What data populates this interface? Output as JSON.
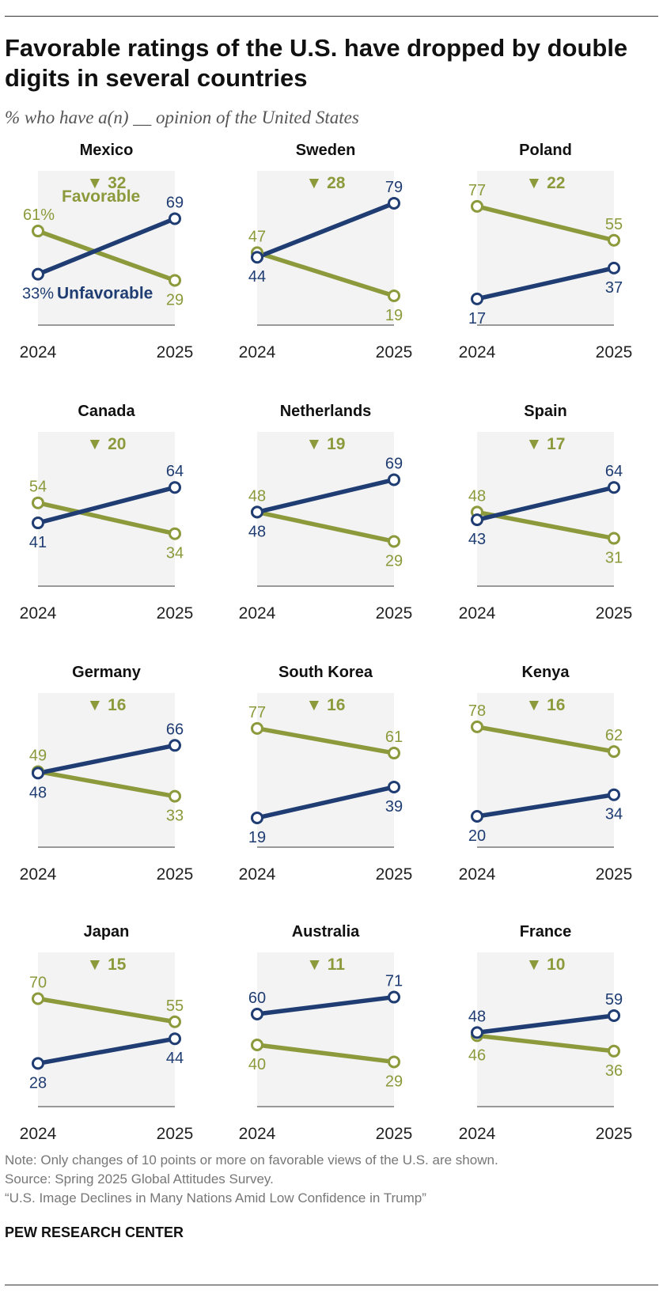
{
  "title": "Favorable ratings of the U.S. have dropped by double digits in several countries",
  "subtitle": "% who have a(n) __ opinion of the United States",
  "colors": {
    "favorable": "#8c9a3c",
    "unfavorable": "#1f3d73",
    "panel": "#f3f3f3",
    "axis": "#999999",
    "year_label": "#222222"
  },
  "notes": {
    "note": "Note: Only changes of 10 points or more on favorable views of the U.S. are shown.",
    "source": "Source: Spring 2025 Global Attitudes Survey.",
    "report": "“U.S. Image Declines in Many Nations Amid Low Confidence in Trump”",
    "org": "PEW RESEARCH CENTER"
  },
  "chart_data": {
    "type": "line",
    "x": [
      "2024",
      "2025"
    ],
    "series_names": [
      "Favorable",
      "Unfavorable"
    ],
    "legend_labels": {
      "favorable": "Favorable",
      "unfavorable": "Unfavorable",
      "first_favorable": "61%",
      "first_unfavorable": "33%"
    },
    "change_marker": "▼",
    "panels": [
      {
        "country": "Mexico",
        "change": "32",
        "favorable": [
          61,
          29
        ],
        "unfavorable": [
          33,
          69
        ]
      },
      {
        "country": "Sweden",
        "change": "28",
        "favorable": [
          47,
          19
        ],
        "unfavorable": [
          44,
          79
        ]
      },
      {
        "country": "Poland",
        "change": "22",
        "favorable": [
          77,
          55
        ],
        "unfavorable": [
          17,
          37
        ]
      },
      {
        "country": "Canada",
        "change": "20",
        "favorable": [
          54,
          34
        ],
        "unfavorable": [
          41,
          64
        ]
      },
      {
        "country": "Netherlands",
        "change": "19",
        "favorable": [
          48,
          29
        ],
        "unfavorable": [
          48,
          69
        ]
      },
      {
        "country": "Spain",
        "change": "17",
        "favorable": [
          48,
          31
        ],
        "unfavorable": [
          43,
          64
        ]
      },
      {
        "country": "Germany",
        "change": "16",
        "favorable": [
          49,
          33
        ],
        "unfavorable": [
          48,
          66
        ]
      },
      {
        "country": "South Korea",
        "change": "16",
        "favorable": [
          77,
          61
        ],
        "unfavorable": [
          19,
          39
        ]
      },
      {
        "country": "Kenya",
        "change": "16",
        "favorable": [
          78,
          62
        ],
        "unfavorable": [
          20,
          34
        ]
      },
      {
        "country": "Japan",
        "change": "15",
        "favorable": [
          70,
          55
        ],
        "unfavorable": [
          28,
          44
        ]
      },
      {
        "country": "Australia",
        "change": "11",
        "favorable": [
          40,
          29
        ],
        "unfavorable": [
          60,
          71
        ]
      },
      {
        "country": "France",
        "change": "10",
        "favorable": [
          46,
          36
        ],
        "unfavorable": [
          48,
          59
        ]
      }
    ]
  }
}
